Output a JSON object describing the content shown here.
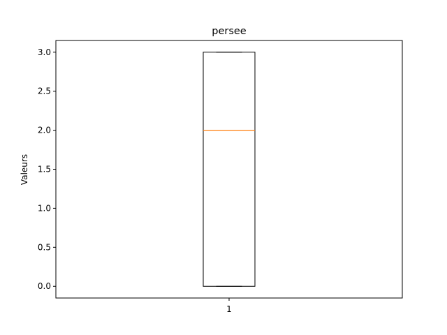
{
  "chart_data": {
    "type": "boxplot",
    "title": "persee",
    "xlabel": "",
    "ylabel": "Valeurs",
    "categories": [
      "1"
    ],
    "boxes": [
      {
        "category": "1",
        "whislo": 0.0,
        "q1": 0.0,
        "med": 2.0,
        "q3": 3.0,
        "whishi": 3.0
      }
    ],
    "ylim": [
      -0.15,
      3.15
    ],
    "yticks": [
      0.0,
      0.5,
      1.0,
      1.5,
      2.0,
      2.5,
      3.0
    ],
    "ytick_labels": [
      "0.0",
      "0.5",
      "1.0",
      "1.5",
      "2.0",
      "2.5",
      "3.0"
    ],
    "grid": false,
    "colors": {
      "box": "#000000",
      "median": "#ff7f0e"
    }
  }
}
